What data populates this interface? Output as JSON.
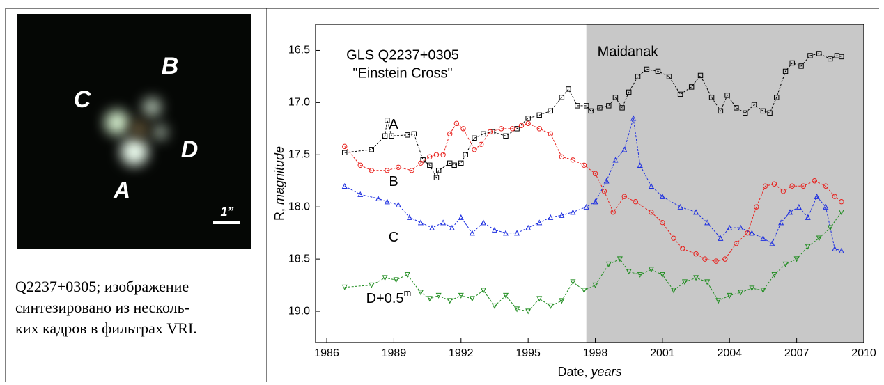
{
  "image": {
    "labels": [
      "A",
      "B",
      "C",
      "D"
    ],
    "scale": "1”"
  },
  "caption": {
    "lines": [
      "Q2237+0305; изображение",
      "синтезировано из несколь-",
      "ких кадров в фильтрах VRI."
    ]
  },
  "chart_data": {
    "type": "line",
    "title": "GLS Q2237+0305",
    "subtitle": "\"Einstein Cross\"",
    "xlabel": {
      "text": "Date, ",
      "italic": "years"
    },
    "ylabel": {
      "text": "R, ",
      "italic": "magnitude"
    },
    "xlim": [
      1985.5,
      2010
    ],
    "ylim": [
      19.3,
      16.25
    ],
    "xticks": [
      1986,
      1989,
      1992,
      1995,
      1998,
      2001,
      2004,
      2007,
      2010
    ],
    "yticks": [
      {
        "value": 16.5,
        "label": "16.5"
      },
      {
        "value": 17,
        "label": "17.0"
      },
      {
        "value": 17.5,
        "label": "17.5"
      },
      {
        "value": 18,
        "label": "18.0"
      },
      {
        "value": 18.5,
        "label": "18.5"
      },
      {
        "value": 19,
        "label": "19.0"
      }
    ],
    "shade": {
      "from": 1997.6,
      "label": "Maidanak",
      "color": "#c8c8c8"
    },
    "series": [
      {
        "name": "A",
        "color": "#000000",
        "marker": "square",
        "x": [
          1986.8,
          1988.0,
          1988.6,
          1988.7,
          1988.9,
          1989.6,
          1989.9,
          1990.3,
          1990.6,
          1990.9,
          1991.0,
          1991.5,
          1991.7,
          1992.0,
          1992.2,
          1992.6,
          1993.0,
          1993.4,
          1994.0,
          1994.5,
          1995.0,
          1995.5,
          1996.0,
          1996.5,
          1996.8,
          1997.2,
          1997.6,
          1997.8,
          1998.2,
          1998.6,
          1998.9,
          1999.2,
          1999.5,
          1999.9,
          2000.3,
          2000.8,
          2001.3,
          2001.8,
          2002.3,
          2002.7,
          2003.2,
          2003.6,
          2003.9,
          2004.3,
          2004.7,
          2005.1,
          2005.5,
          2005.8,
          2006.1,
          2006.5,
          2006.8,
          2007.2,
          2007.6,
          2008.0,
          2008.5,
          2008.8,
          2009.0
        ],
        "values": [
          17.48,
          17.45,
          17.32,
          17.17,
          17.32,
          17.31,
          17.3,
          17.55,
          17.6,
          17.72,
          17.65,
          17.58,
          17.6,
          17.58,
          17.5,
          17.34,
          17.3,
          17.28,
          17.32,
          17.25,
          17.15,
          17.12,
          17.08,
          16.95,
          16.87,
          17.03,
          17.03,
          17.08,
          17.05,
          17.03,
          16.95,
          17.05,
          16.9,
          16.75,
          16.68,
          16.7,
          16.75,
          16.92,
          16.85,
          16.74,
          16.95,
          17.08,
          16.93,
          17.05,
          17.1,
          17.02,
          17.08,
          17.1,
          16.95,
          16.7,
          16.62,
          16.65,
          16.55,
          16.53,
          16.58,
          16.55,
          16.56
        ]
      },
      {
        "name": "B",
        "color": "#e8201c",
        "marker": "circle",
        "x": [
          1986.8,
          1987.5,
          1988.0,
          1988.7,
          1989.2,
          1989.8,
          1990.2,
          1990.6,
          1990.9,
          1991.2,
          1991.5,
          1991.8,
          1992.1,
          1992.6,
          1992.9,
          1993.3,
          1993.8,
          1994.3,
          1994.7,
          1995.0,
          1995.5,
          1996.0,
          1996.5,
          1997.0,
          1997.5,
          1998.0,
          1998.4,
          1998.8,
          1999.3,
          1999.8,
          2000.5,
          2001.0,
          2001.5,
          2001.9,
          2002.5,
          2002.9,
          2003.4,
          2003.8,
          2004.3,
          2004.8,
          2005.2,
          2005.6,
          2006.0,
          2006.4,
          2006.8,
          2007.3,
          2007.8,
          2008.3,
          2008.7,
          2009.0
        ],
        "values": [
          17.42,
          17.6,
          17.65,
          17.65,
          17.62,
          17.65,
          17.58,
          17.52,
          17.5,
          17.5,
          17.3,
          17.2,
          17.25,
          17.45,
          17.4,
          17.28,
          17.25,
          17.25,
          17.22,
          17.2,
          17.25,
          17.3,
          17.52,
          17.55,
          17.6,
          17.68,
          17.85,
          18.05,
          17.9,
          17.95,
          18.05,
          18.15,
          18.3,
          18.4,
          18.45,
          18.5,
          18.52,
          18.5,
          18.35,
          18.25,
          18.0,
          17.8,
          17.78,
          17.85,
          17.8,
          17.8,
          17.75,
          17.8,
          17.9,
          17.95
        ]
      },
      {
        "name": "C",
        "color": "#1c2ee0",
        "marker": "triangle",
        "x": [
          1986.8,
          1987.5,
          1988.3,
          1988.7,
          1989.2,
          1989.7,
          1990.2,
          1990.7,
          1991.2,
          1991.6,
          1992.0,
          1992.5,
          1993.0,
          1993.5,
          1994.0,
          1994.5,
          1995.0,
          1995.5,
          1996.0,
          1996.5,
          1997.0,
          1997.6,
          1998.0,
          1998.5,
          1998.9,
          1999.3,
          1999.7,
          2000.0,
          2000.5,
          2001.0,
          2001.8,
          2002.5,
          2003.0,
          2003.6,
          2004.0,
          2004.5,
          2005.0,
          2005.5,
          2005.9,
          2006.3,
          2006.7,
          2007.1,
          2007.5,
          2007.9,
          2008.3,
          2008.7,
          2009.0
        ],
        "values": [
          17.8,
          17.88,
          17.92,
          17.95,
          17.98,
          18.1,
          18.15,
          18.2,
          18.15,
          18.2,
          18.1,
          18.25,
          18.15,
          18.22,
          18.25,
          18.25,
          18.2,
          18.15,
          18.1,
          18.08,
          18.05,
          18.0,
          17.95,
          17.75,
          17.55,
          17.45,
          17.15,
          17.6,
          17.8,
          17.9,
          18.0,
          18.05,
          18.15,
          18.3,
          18.2,
          18.2,
          18.25,
          18.3,
          18.35,
          18.15,
          18.05,
          18.0,
          18.1,
          17.9,
          18.0,
          18.4,
          18.42
        ]
      },
      {
        "name": "D+0.5",
        "name_superscript": "m",
        "color": "#1e8c1e",
        "marker": "triangle-down",
        "x": [
          1986.8,
          1988.0,
          1988.6,
          1989.1,
          1989.6,
          1990.2,
          1990.6,
          1991.0,
          1991.5,
          1992.0,
          1992.5,
          1993.0,
          1993.5,
          1994.0,
          1994.5,
          1995.0,
          1995.5,
          1996.0,
          1996.5,
          1997.0,
          1997.5,
          1998.0,
          1998.6,
          1999.1,
          1999.5,
          2000.0,
          2000.5,
          2001.0,
          2001.5,
          2002.0,
          2002.5,
          2003.0,
          2003.5,
          2004.0,
          2004.5,
          2005.0,
          2005.5,
          2006.0,
          2006.5,
          2007.0,
          2007.5,
          2008.0,
          2008.5,
          2009.0
        ],
        "values": [
          18.77,
          18.75,
          18.68,
          18.7,
          18.65,
          18.82,
          18.88,
          18.85,
          18.9,
          18.85,
          18.88,
          18.8,
          18.95,
          18.85,
          18.98,
          19.0,
          18.88,
          18.95,
          18.9,
          18.72,
          18.8,
          18.75,
          18.55,
          18.5,
          18.62,
          18.65,
          18.6,
          18.65,
          18.8,
          18.72,
          18.68,
          18.72,
          18.9,
          18.85,
          18.82,
          18.78,
          18.8,
          18.65,
          18.55,
          18.5,
          18.38,
          18.3,
          18.2,
          18.05
        ]
      }
    ]
  }
}
